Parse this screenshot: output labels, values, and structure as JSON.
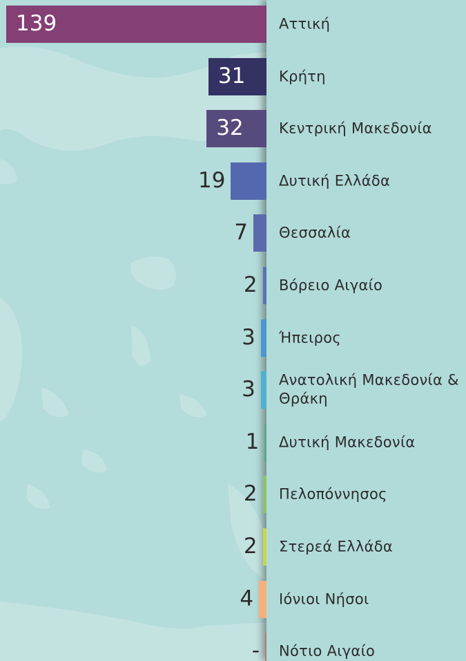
{
  "chart_data": {
    "type": "bar",
    "categories": [
      "Αττική",
      "Κρήτη",
      "Κεντρική Μακεδονία",
      "Δυτική Ελλάδα",
      "Θεσσαλία",
      "Βόρειο Αιγαίο",
      "Ήπειρος",
      "Ανατολική Μακεδονία & Θράκη",
      "Δυτική Μακεδονία",
      "Πελοπόννησος",
      "Στερεά Ελλάδα",
      "Ιόνιοι Νήσοι",
      "Νότιο Αιγαίο"
    ],
    "values": [
      139,
      31,
      32,
      19,
      7,
      2,
      3,
      3,
      1,
      2,
      2,
      4,
      null
    ],
    "value_labels": [
      "139",
      "31",
      "32",
      "19",
      "7",
      "2",
      "3",
      "3",
      "1",
      "2",
      "2",
      "4",
      "-"
    ],
    "colors": [
      "#843f74",
      "#343163",
      "#574a7c",
      "#5468b0",
      "#5a6aaa",
      "#5874b5",
      "#4d96d0",
      "#4fb3cf",
      "#5aa98a",
      "#8dc36c",
      "#c7d84a",
      "#f7b07a",
      "#b57c63"
    ]
  }
}
